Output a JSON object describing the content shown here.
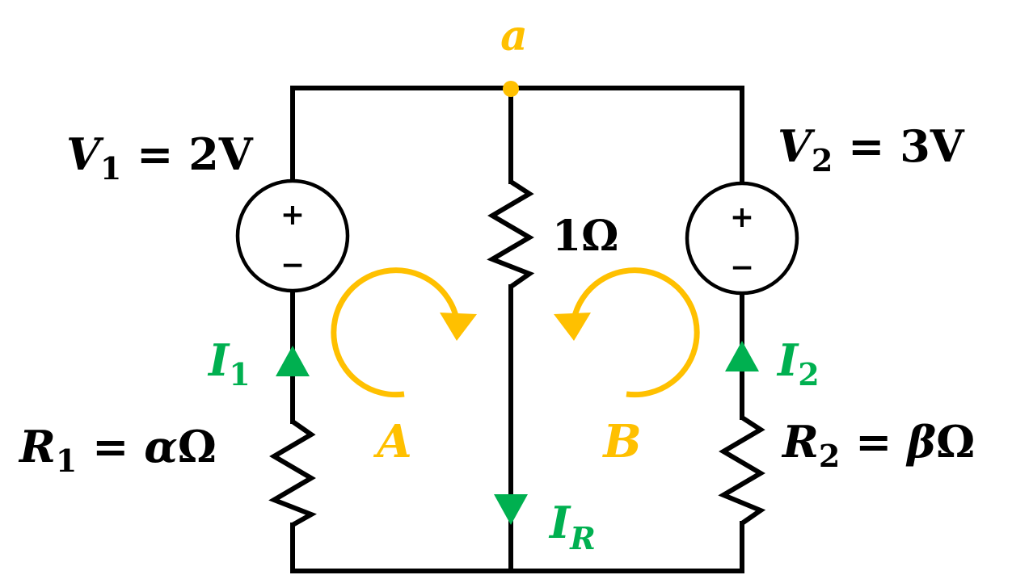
{
  "node_a": {
    "label": "a"
  },
  "sources": {
    "v1": {
      "name": "V",
      "sub": "1",
      "eq": " = 2V"
    },
    "v2": {
      "name": "V",
      "sub": "2",
      "eq": " = 3V"
    },
    "plus": "+",
    "minus": "−"
  },
  "resistors": {
    "r1": {
      "name": "R",
      "sub": "1",
      "eq": " = ",
      "value": "α",
      "unit": "Ω"
    },
    "r2": {
      "name": "R",
      "sub": "2",
      "eq": " = ",
      "value": "β",
      "unit": "Ω"
    },
    "rm": {
      "value": "1Ω"
    }
  },
  "currents": {
    "i1": {
      "name": "I",
      "sub": "1"
    },
    "i2": {
      "name": "I",
      "sub": "2"
    },
    "ir": {
      "name": "I",
      "sub": "R"
    }
  },
  "loops": {
    "a": {
      "label": "A"
    },
    "b": {
      "label": "B"
    }
  },
  "colors": {
    "wire": "#000000",
    "loop": "#FFC000",
    "current": "#00B050",
    "node": "#FFC000"
  }
}
